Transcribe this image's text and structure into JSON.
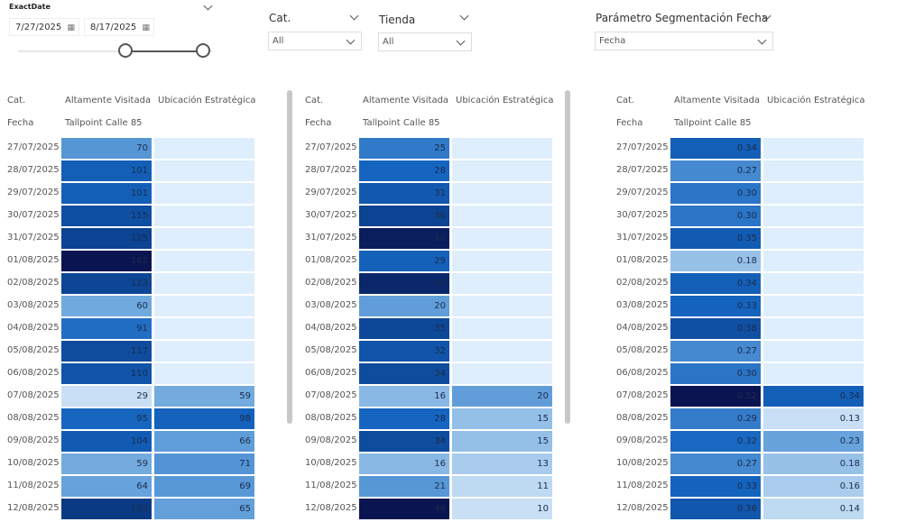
{
  "filters": {
    "date": {
      "label": "ExactDate",
      "start": "7/27/2025",
      "end": "8/17/2025",
      "slider_start_fraction": 0.56,
      "slider_end_fraction": 0.96
    },
    "cat": {
      "label": "Cat.",
      "value": "All"
    },
    "tienda": {
      "label": "Tienda",
      "value": "All"
    },
    "param": {
      "label": "Parámetro Segmentación Fecha",
      "value": "Fecha"
    }
  },
  "header": {
    "cat": "Cat.",
    "fecha": "Fecha",
    "col1": "Altamente Visitada",
    "col1_sub": "Tallpoint Calle 85",
    "col2": "Ubicación Estratégica"
  },
  "dates": [
    "27/07/2025",
    "28/07/2025",
    "29/07/2025",
    "30/07/2025",
    "31/07/2025",
    "01/08/2025",
    "02/08/2025",
    "03/08/2025",
    "04/08/2025",
    "05/08/2025",
    "06/08/2025",
    "07/08/2025",
    "08/08/2025",
    "09/08/2025",
    "10/08/2025",
    "11/08/2025",
    "12/08/2025"
  ],
  "tables": [
    {
      "col1": [
        "70",
        "101",
        "101",
        "115",
        "125",
        "162",
        "123",
        "60",
        "91",
        "117",
        "110",
        "29",
        "95",
        "104",
        "59",
        "64",
        "133"
      ],
      "col2": [
        "",
        "",
        "",
        "",
        "",
        "",
        "",
        "",
        "",
        "",
        "",
        "59",
        "98",
        "66",
        "71",
        "69",
        "65"
      ]
    },
    {
      "col1": [
        "25",
        "28",
        "31",
        "36",
        "44",
        "29",
        "42",
        "20",
        "35",
        "32",
        "34",
        "16",
        "28",
        "34",
        "16",
        "21",
        "46"
      ],
      "col2": [
        "",
        "",
        "",
        "",
        "",
        "",
        "",
        "",
        "",
        "",
        "",
        "20",
        "15",
        "15",
        "13",
        "11",
        "10"
      ]
    },
    {
      "col1": [
        "0.34",
        "0.27",
        "0.30",
        "0.30",
        "0.35",
        "0.18",
        "0.34",
        "0.33",
        "0.38",
        "0.27",
        "0.30",
        "0.52",
        "0.29",
        "0.32",
        "0.27",
        "0.33",
        "0.36"
      ],
      "col2": [
        "",
        "",
        "",
        "",
        "",
        "",
        "",
        "",
        "",
        "",
        "",
        "0.34",
        "0.13",
        "0.23",
        "0.18",
        "0.16",
        "0.14"
      ]
    }
  ],
  "colors": {
    "empty": "#deeefc",
    "scale": [
      "#c8dff5",
      "#6aa5dc",
      "#1565c0",
      "#0b3f8c",
      "#0a1450"
    ]
  }
}
